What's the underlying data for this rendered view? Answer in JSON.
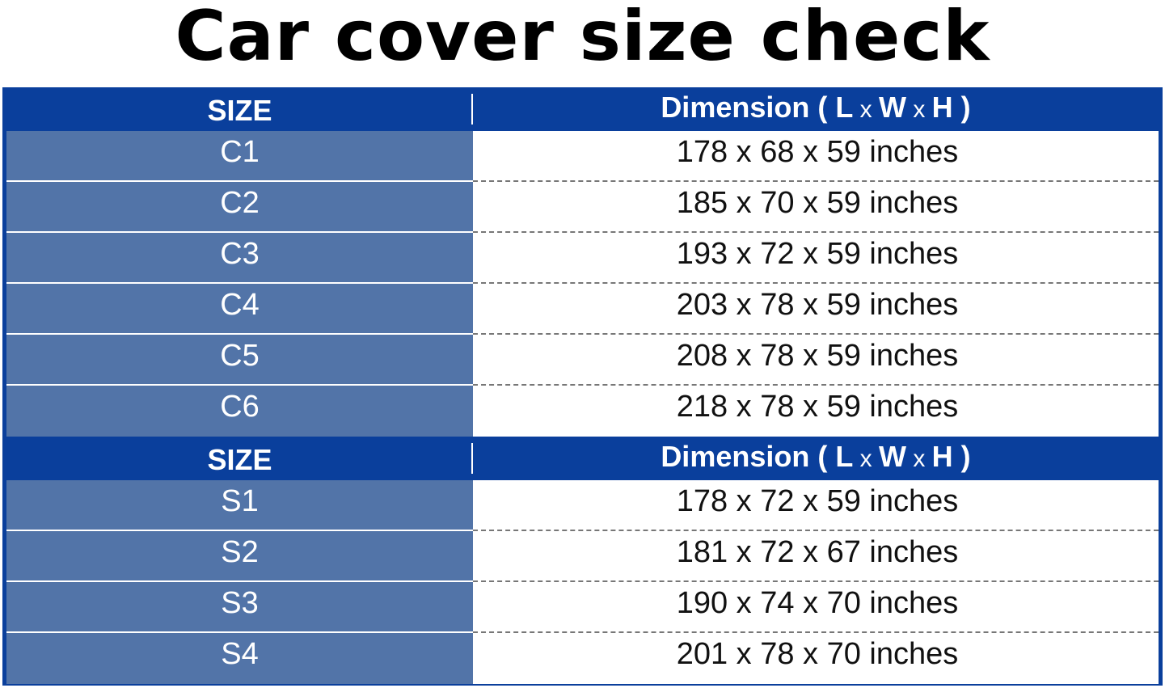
{
  "title": "Car cover size check",
  "colors": {
    "header": "#0a3f9c",
    "size_cell": "#5274a8"
  },
  "header": {
    "size": "SIZE",
    "dim_prefix": "Dimension ( ",
    "L": "L",
    "x1": " x ",
    "W": "W",
    "x2": " x ",
    "H": "H",
    "dim_suffix": " )"
  },
  "group_c": [
    {
      "size": "C1",
      "dimension": "178 x 68 x 59 inches"
    },
    {
      "size": "C2",
      "dimension": "185 x 70 x 59 inches"
    },
    {
      "size": "C3",
      "dimension": "193 x 72 x 59 inches"
    },
    {
      "size": "C4",
      "dimension": "203 x 78 x 59 inches"
    },
    {
      "size": "C5",
      "dimension": "208 x 78 x 59 inches"
    },
    {
      "size": "C6",
      "dimension": "218 x 78 x 59 inches"
    }
  ],
  "group_s": [
    {
      "size": "S1",
      "dimension": "178 x 72 x 59 inches"
    },
    {
      "size": "S2",
      "dimension": "181 x 72 x 67 inches"
    },
    {
      "size": "S3",
      "dimension": "190 x 74 x 70 inches"
    },
    {
      "size": "S4",
      "dimension": "201 x 78 x 70 inches"
    }
  ]
}
